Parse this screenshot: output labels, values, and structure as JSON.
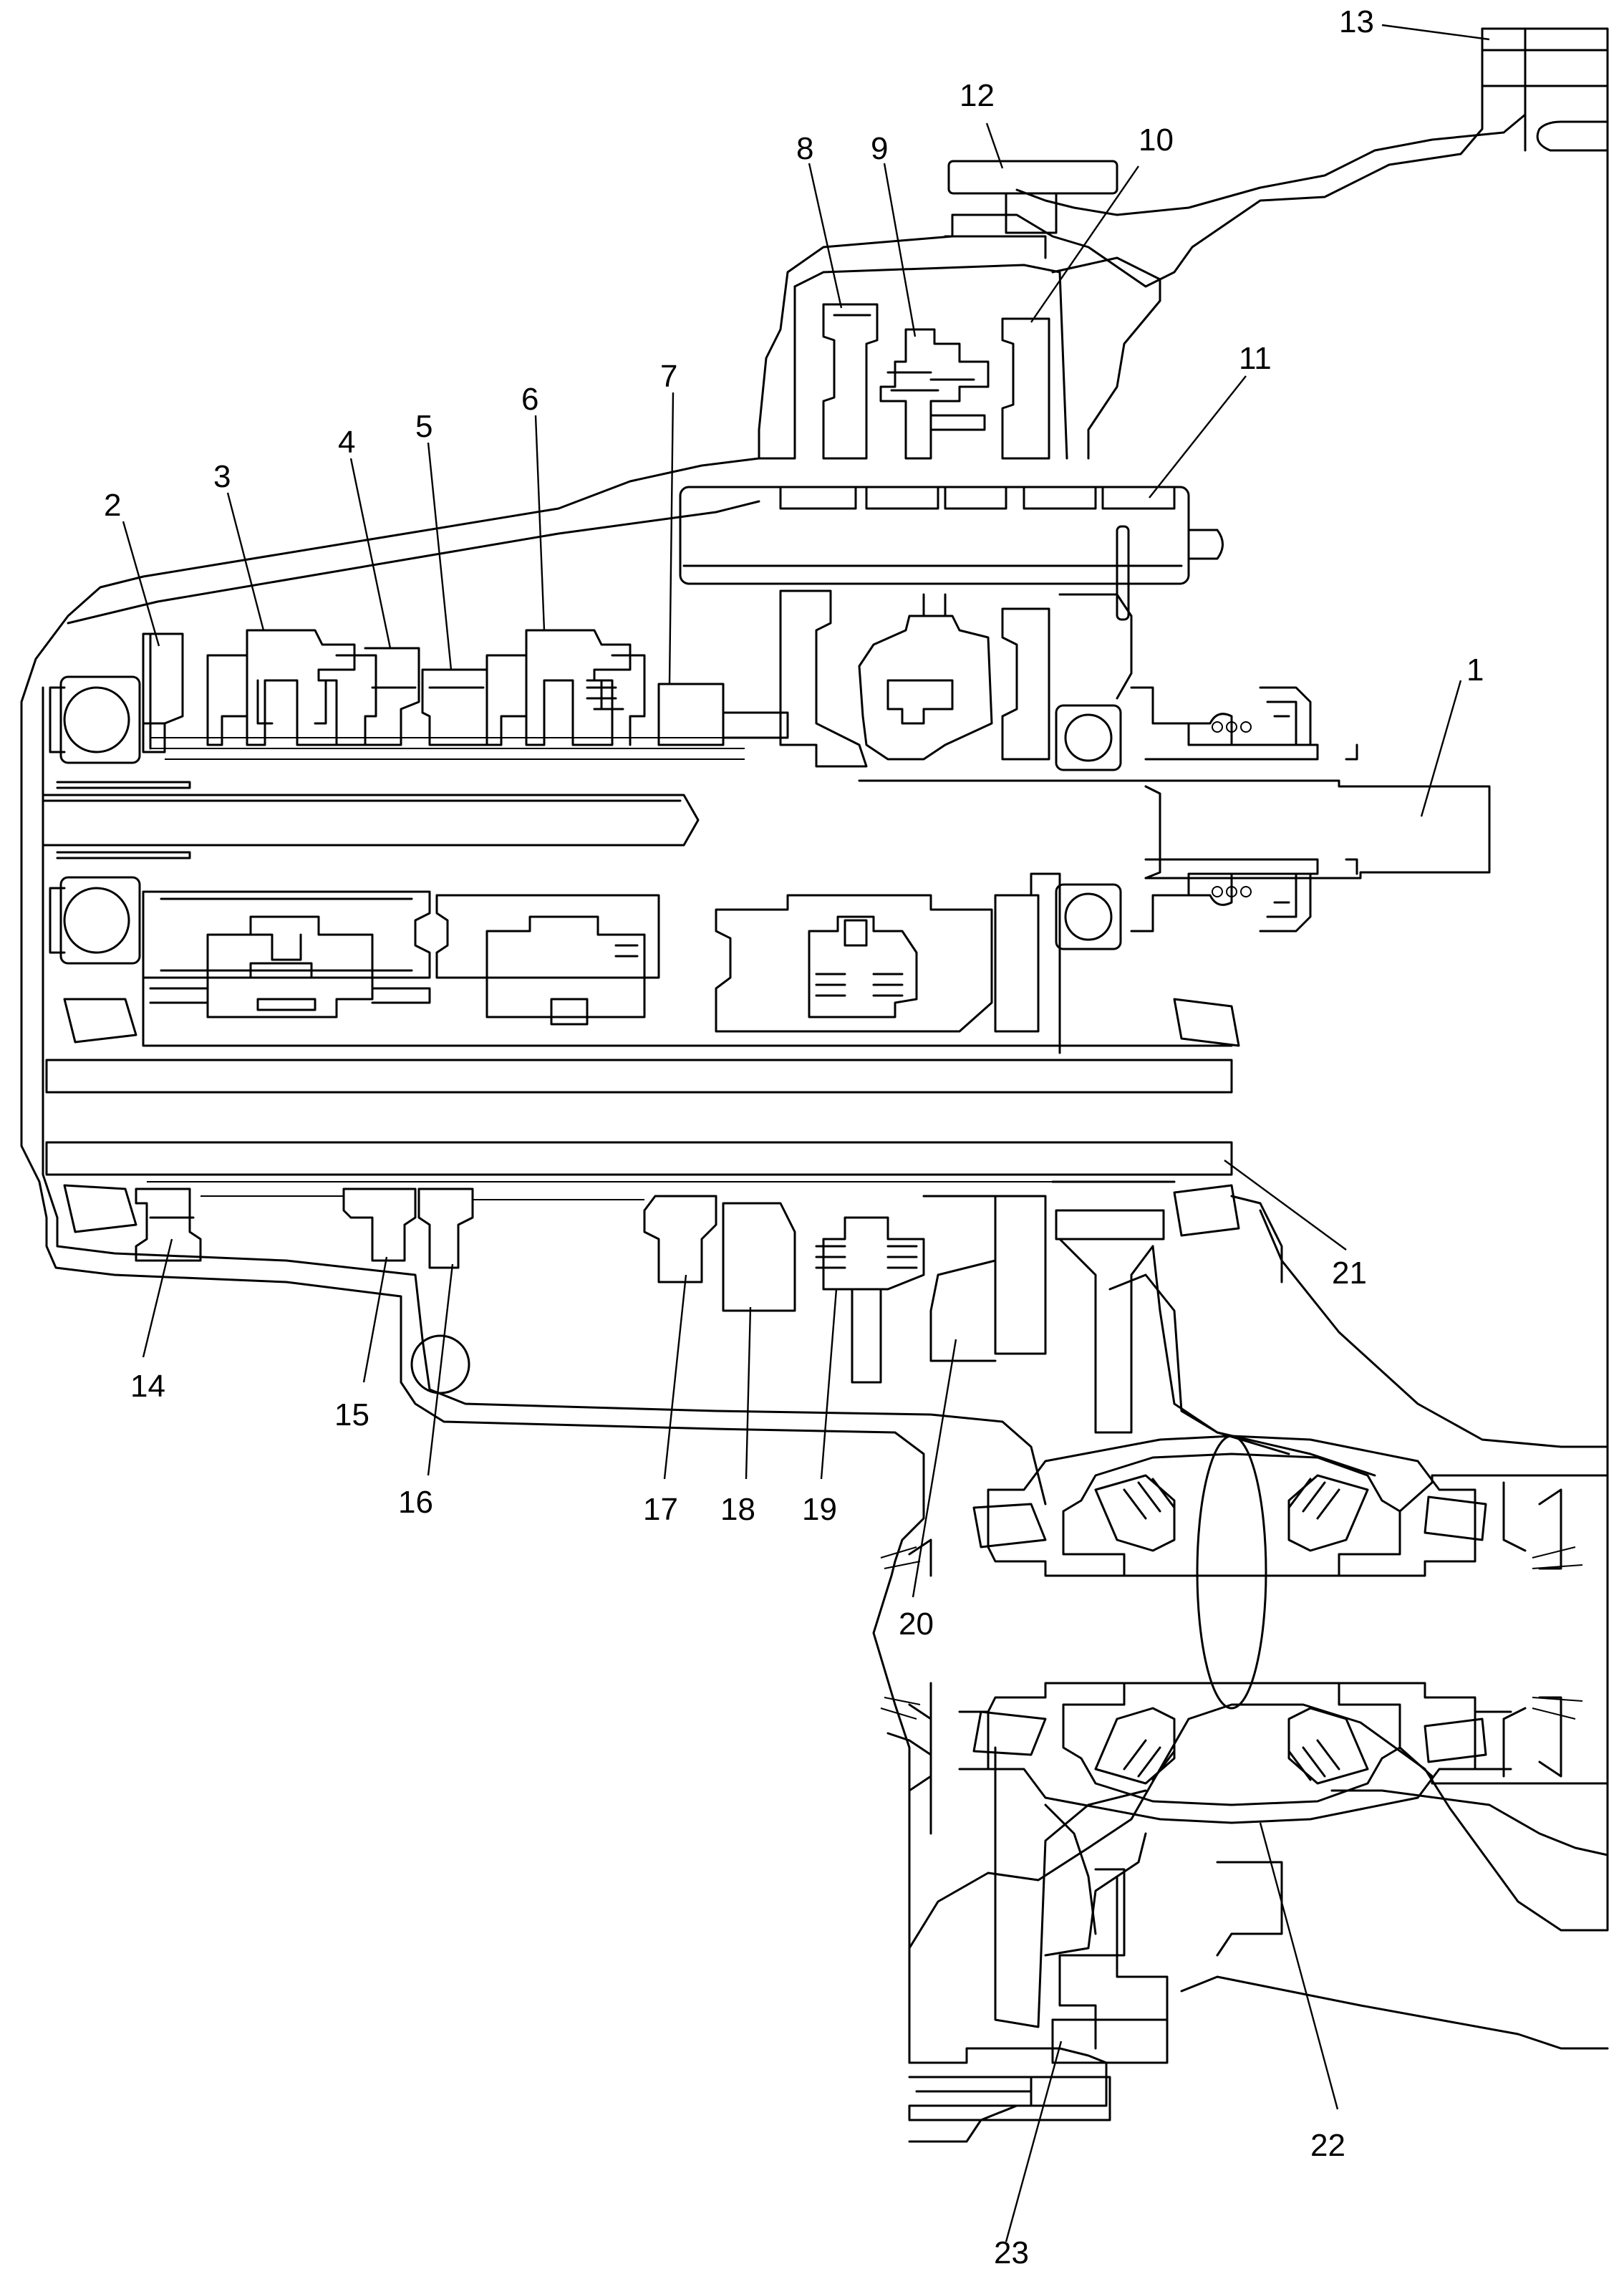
{
  "callouts": [
    {
      "id": "1",
      "text": "1"
    },
    {
      "id": "2",
      "text": "2"
    },
    {
      "id": "3",
      "text": "3"
    },
    {
      "id": "4",
      "text": "4"
    },
    {
      "id": "5",
      "text": "5"
    },
    {
      "id": "6",
      "text": "6"
    },
    {
      "id": "7",
      "text": "7"
    },
    {
      "id": "8",
      "text": "8"
    },
    {
      "id": "9",
      "text": "9"
    },
    {
      "id": "10",
      "text": "10"
    },
    {
      "id": "11",
      "text": "11"
    },
    {
      "id": "12",
      "text": "12"
    },
    {
      "id": "13",
      "text": "13"
    },
    {
      "id": "14",
      "text": "14"
    },
    {
      "id": "15",
      "text": "15"
    },
    {
      "id": "16",
      "text": "16"
    },
    {
      "id": "17",
      "text": "17"
    },
    {
      "id": "18",
      "text": "18"
    },
    {
      "id": "19",
      "text": "19"
    },
    {
      "id": "20",
      "text": "20"
    },
    {
      "id": "21",
      "text": "21"
    },
    {
      "id": "22",
      "text": "22"
    },
    {
      "id": "23",
      "text": "23"
    }
  ]
}
